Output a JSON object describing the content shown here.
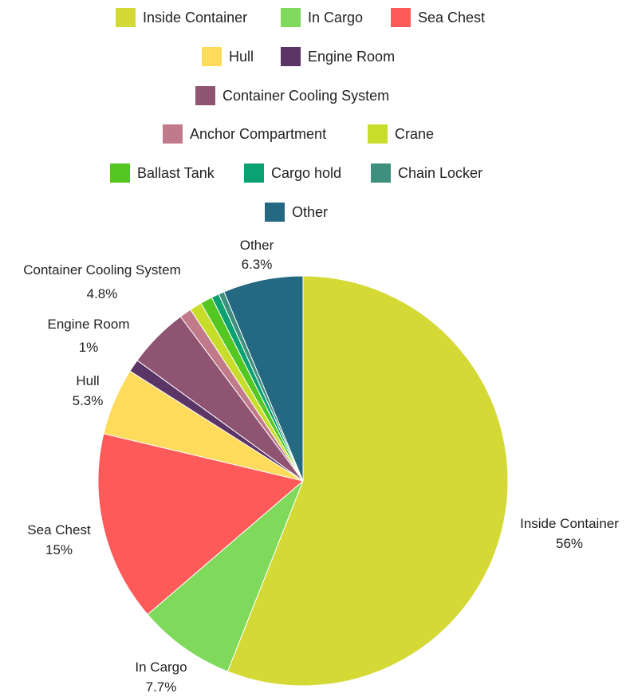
{
  "chart_data": {
    "type": "pie",
    "title": "",
    "legend_position": "top",
    "slices": [
      {
        "label": "Inside Container",
        "value": 56,
        "value_label": "56%",
        "color": "#d4d936",
        "show_label": true
      },
      {
        "label": "In Cargo",
        "value": 7.7,
        "value_label": "7.7%",
        "color": "#7fd95b",
        "show_label": true
      },
      {
        "label": "Sea Chest",
        "value": 15,
        "value_label": "15%",
        "color": "#ff5a5a",
        "show_label": true
      },
      {
        "label": "Hull",
        "value": 5.3,
        "value_label": "5.3%",
        "color": "#ffdb5c",
        "show_label": true
      },
      {
        "label": "Engine Room",
        "value": 1,
        "value_label": "1%",
        "color": "#5b3566",
        "show_label": true
      },
      {
        "label": "Container Cooling System",
        "value": 4.8,
        "value_label": "4.8%",
        "color": "#8e5472",
        "show_label": true
      },
      {
        "label": "Anchor Compartment",
        "value": 0.95,
        "value_label": "",
        "color": "#c07a8a",
        "show_label": false
      },
      {
        "label": "Crane",
        "value": 0.95,
        "value_label": "",
        "color": "#c8dd2a",
        "show_label": false
      },
      {
        "label": "Ballast Tank",
        "value": 0.95,
        "value_label": "",
        "color": "#55c722",
        "show_label": false
      },
      {
        "label": "Cargo hold",
        "value": 0.6,
        "value_label": "",
        "color": "#0aa272",
        "show_label": false
      },
      {
        "label": "Chain Locker",
        "value": 0.45,
        "value_label": "",
        "color": "#3e8f7e",
        "show_label": false
      },
      {
        "label": "Other",
        "value": 6.3,
        "value_label": "6.3%",
        "color": "#246882",
        "show_label": true
      }
    ]
  }
}
